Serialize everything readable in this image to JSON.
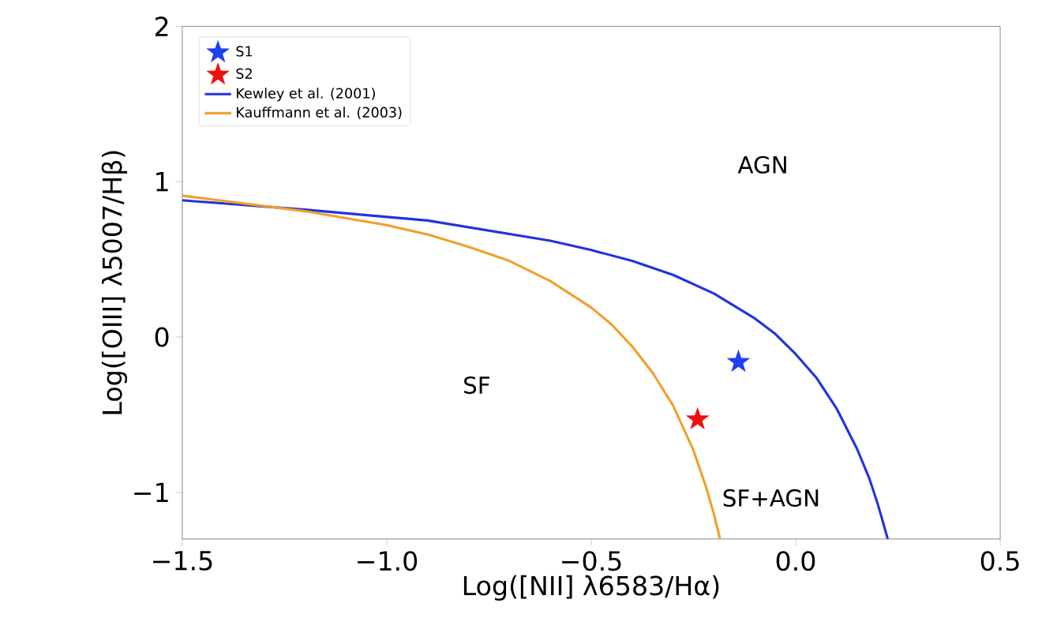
{
  "chart_data": {
    "type": "scatter",
    "xlabel": "Log([NII] λ6583/Hα)",
    "ylabel": "Log([OIII] λ5007/Hβ)",
    "xlim": [
      -1.5,
      0.5
    ],
    "ylim": [
      -1.3,
      2
    ],
    "xticks": [
      {
        "value": -1.5,
        "label": "−1.5"
      },
      {
        "value": -1.0,
        "label": "−1.0"
      },
      {
        "value": -0.5,
        "label": "−0.5"
      },
      {
        "value": 0.0,
        "label": "0.0"
      },
      {
        "value": 0.5,
        "label": "0.5"
      }
    ],
    "yticks": [
      {
        "value": -1,
        "label": "−1"
      },
      0,
      1,
      2
    ],
    "legend": "top left",
    "grid": false,
    "series": [
      {
        "name": "S1",
        "type": "scatter",
        "marker": "star",
        "color": "#1f3ff0",
        "x": [
          -0.14
        ],
        "values": [
          -0.16
        ]
      },
      {
        "name": "S2",
        "type": "scatter",
        "marker": "star",
        "color": "#ee1111",
        "x": [
          -0.24
        ],
        "values": [
          -0.53
        ]
      },
      {
        "name": "Kewley et al. (2001)",
        "type": "line",
        "marker": "none",
        "color": "#2233dd",
        "x": [
          -1.5,
          -1.2,
          -0.9,
          -0.6,
          -0.5,
          -0.4,
          -0.3,
          -0.2,
          -0.1,
          -0.05,
          0.0,
          0.05,
          0.1,
          0.15,
          0.18,
          0.2,
          0.21,
          0.225
        ],
        "values": [
          0.88,
          0.82,
          0.75,
          0.62,
          0.56,
          0.49,
          0.4,
          0.28,
          0.12,
          0.02,
          -0.11,
          -0.26,
          -0.46,
          -0.72,
          -0.91,
          -1.07,
          -1.16,
          -1.3
        ]
      },
      {
        "name": "Kauffmann et al. (2003)",
        "type": "line",
        "marker": "none",
        "color": "#f0a030",
        "x": [
          -1.5,
          -1.2,
          -1.0,
          -0.9,
          -0.8,
          -0.7,
          -0.6,
          -0.5,
          -0.45,
          -0.4,
          -0.35,
          -0.3,
          -0.25,
          -0.22,
          -0.2,
          -0.185
        ],
        "values": [
          0.91,
          0.81,
          0.72,
          0.66,
          0.58,
          0.49,
          0.36,
          0.19,
          0.08,
          -0.06,
          -0.23,
          -0.44,
          -0.73,
          -0.96,
          -1.14,
          -1.3
        ]
      }
    ],
    "annotations": [
      "AGN",
      "SF",
      "SF+AGN"
    ]
  }
}
